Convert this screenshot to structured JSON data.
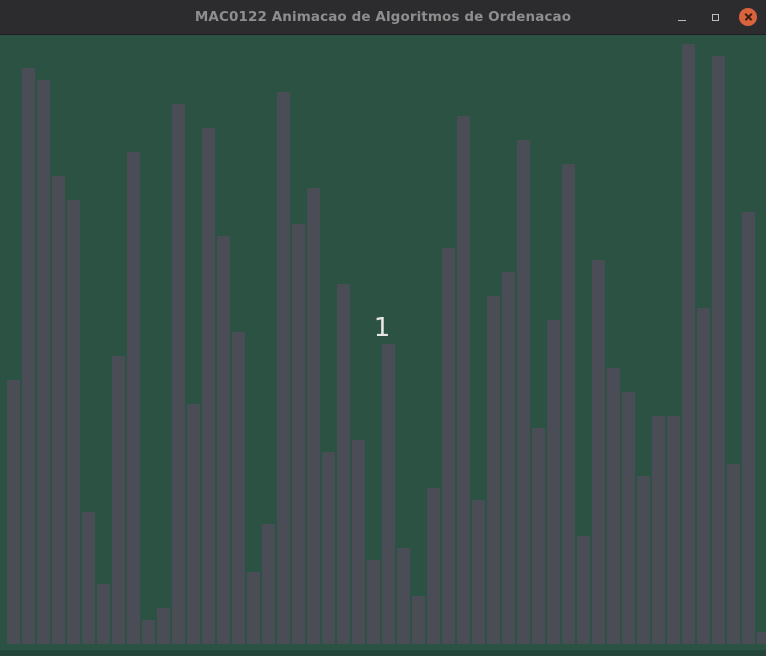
{
  "window": {
    "title": "MAC0122 Animacao de Algoritmos de Ordenacao",
    "controls": {
      "minimize_icon": "minimize-icon",
      "maximize_icon": "maximize-icon",
      "close_icon": "close-icon"
    }
  },
  "animation": {
    "step_label": "1",
    "colors": {
      "background": "#2c5243",
      "bar": "#4a4d55",
      "label": "#e6e6e6"
    },
    "max_value": 50,
    "values": [
      22,
      48,
      47,
      39,
      37,
      11,
      5,
      24,
      41,
      2,
      3,
      45,
      20,
      43,
      34,
      26,
      6,
      10,
      46,
      35,
      38,
      16,
      30,
      17,
      7,
      25,
      8,
      4,
      13,
      33,
      44,
      12,
      29,
      31,
      42,
      18,
      27,
      40,
      9,
      32,
      23,
      21,
      14,
      19,
      19,
      50,
      28,
      49,
      15,
      36,
      1
    ]
  }
}
